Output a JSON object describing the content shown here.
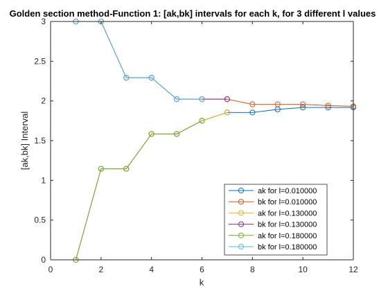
{
  "chart_data": {
    "type": "line",
    "title": "Golden section method-Function 1: [ak,bk] intervals for each k, for 3 different l values",
    "xlabel": "k",
    "ylabel": "[ak,bk] Interval",
    "xlim": [
      0,
      12
    ],
    "ylim": [
      0,
      3
    ],
    "xticks": [
      "0",
      "2",
      "4",
      "6",
      "8",
      "10",
      "12"
    ],
    "yticks": [
      "0",
      "0.5",
      "1",
      "1.5",
      "2",
      "2.5",
      "3"
    ],
    "grid": false,
    "legend_position": "bottom-right",
    "series": [
      {
        "name": "ak for l=0.010000",
        "color": "#0072BD",
        "x": [
          1,
          2,
          3,
          4,
          5,
          6,
          7,
          8,
          9,
          10,
          11,
          12
        ],
        "y": [
          0,
          1.146,
          1.146,
          1.584,
          1.584,
          1.751,
          1.854,
          1.854,
          1.894,
          1.918,
          1.918,
          1.918
        ]
      },
      {
        "name": "bk for l=0.010000",
        "color": "#D95319",
        "x": [
          1,
          2,
          3,
          4,
          5,
          6,
          7,
          8,
          9,
          10,
          11,
          12
        ],
        "y": [
          3,
          3,
          2.292,
          2.292,
          2.022,
          2.022,
          2.022,
          1.957,
          1.957,
          1.957,
          1.941,
          1.932
        ]
      },
      {
        "name": "ak for l=0.130000",
        "color": "#EDB120",
        "x": [
          1,
          2,
          3,
          4,
          5,
          6,
          7
        ],
        "y": [
          0,
          1.146,
          1.146,
          1.584,
          1.584,
          1.751,
          1.854
        ]
      },
      {
        "name": "bk for l=0.130000",
        "color": "#7E2F8E",
        "x": [
          1,
          2,
          3,
          4,
          5,
          6,
          7
        ],
        "y": [
          3,
          3,
          2.292,
          2.292,
          2.022,
          2.022,
          2.022
        ]
      },
      {
        "name": "ak for l=0.180000",
        "color": "#77AC30",
        "x": [
          1,
          2,
          3,
          4,
          5,
          6
        ],
        "y": [
          0,
          1.146,
          1.146,
          1.584,
          1.584,
          1.751
        ]
      },
      {
        "name": "bk for l=0.180000",
        "color": "#4DBEEE",
        "x": [
          1,
          2,
          3,
          4,
          5,
          6
        ],
        "y": [
          3,
          3,
          2.292,
          2.292,
          2.022,
          2.022
        ]
      }
    ]
  }
}
